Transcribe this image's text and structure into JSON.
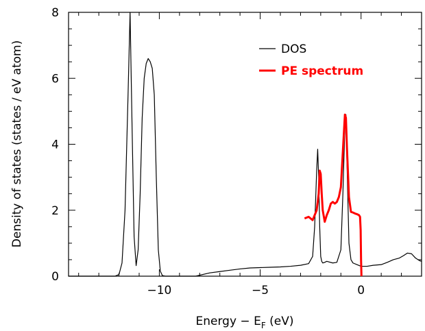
{
  "chart_data": {
    "type": "line",
    "xlabel": "Energy − E",
    "xlabel_subscript": "F",
    "xlabel_unit": " (eV)",
    "ylabel": "Density of states (states / eV atom)",
    "xlim": [
      -14.5,
      3
    ],
    "ylim": [
      0,
      8
    ],
    "x_ticks": [
      -10,
      -5,
      0
    ],
    "x_tick_labels": [
      "−10",
      "−5",
      "0"
    ],
    "y_ticks": [
      0,
      2,
      4,
      6,
      8
    ],
    "y_tick_labels": [
      "0",
      "2",
      "4",
      "6",
      "8"
    ],
    "grid": false,
    "legend_position": "top-right",
    "series": [
      {
        "name": "DOS",
        "color": "#000000",
        "x": [
          -14.5,
          -12.2,
          -12.0,
          -11.85,
          -11.7,
          -11.55,
          -11.45,
          -11.35,
          -11.25,
          -11.15,
          -11.05,
          -10.95,
          -10.85,
          -10.75,
          -10.65,
          -10.55,
          -10.45,
          -10.35,
          -10.25,
          -10.15,
          -10.05,
          -9.95,
          -9.85,
          -9.7,
          -8.2,
          -7.5,
          -7.0,
          -6.5,
          -6.0,
          -5.5,
          -5.0,
          -4.5,
          -4.0,
          -3.5,
          -3.0,
          -2.6,
          -2.4,
          -2.3,
          -2.2,
          -2.15,
          -2.1,
          -2.05,
          -2.0,
          -1.95,
          -1.9,
          -1.8,
          -1.7,
          -1.4,
          -1.2,
          -1.0,
          -0.9,
          -0.8,
          -0.75,
          -0.7,
          -0.6,
          -0.5,
          -0.4,
          -0.2,
          0.0,
          0.3,
          0.6,
          1.0,
          1.3,
          1.6,
          1.9,
          2.1,
          2.3,
          2.5,
          2.7,
          2.9,
          3.0
        ],
        "y": [
          0.0,
          0.0,
          0.05,
          0.4,
          2.0,
          5.5,
          8.0,
          4.5,
          1.2,
          0.32,
          0.8,
          2.5,
          4.8,
          6.0,
          6.45,
          6.6,
          6.5,
          6.3,
          5.5,
          3.0,
          0.8,
          0.15,
          0.02,
          0.0,
          0.0,
          0.1,
          0.14,
          0.18,
          0.22,
          0.25,
          0.26,
          0.27,
          0.28,
          0.3,
          0.33,
          0.38,
          0.6,
          1.5,
          3.2,
          3.85,
          3.0,
          1.5,
          0.6,
          0.45,
          0.4,
          0.42,
          0.45,
          0.4,
          0.42,
          0.8,
          2.5,
          4.6,
          4.9,
          3.5,
          1.0,
          0.5,
          0.4,
          0.35,
          0.3,
          0.3,
          0.33,
          0.35,
          0.42,
          0.5,
          0.55,
          0.62,
          0.7,
          0.68,
          0.55,
          0.47,
          0.45
        ]
      },
      {
        "name": "PE spectrum",
        "color": "#ff0000",
        "x": [
          -2.8,
          -2.6,
          -2.4,
          -2.2,
          -2.1,
          -2.05,
          -2.0,
          -1.95,
          -1.9,
          -1.8,
          -1.7,
          -1.6,
          -1.5,
          -1.4,
          -1.3,
          -1.2,
          -1.1,
          -1.0,
          -0.9,
          -0.8,
          -0.75,
          -0.7,
          -0.6,
          -0.5,
          -0.4,
          -0.3,
          -0.2,
          -0.1,
          -0.05,
          -0.02,
          0.0,
          0.02
        ],
        "y": [
          1.75,
          1.8,
          1.7,
          2.0,
          2.5,
          3.2,
          3.1,
          2.5,
          2.0,
          1.65,
          1.85,
          2.0,
          2.2,
          2.25,
          2.2,
          2.25,
          2.4,
          2.7,
          3.8,
          4.9,
          4.8,
          3.9,
          2.4,
          1.95,
          1.93,
          1.9,
          1.88,
          1.85,
          1.8,
          1.4,
          0.5,
          0.0
        ]
      }
    ]
  }
}
